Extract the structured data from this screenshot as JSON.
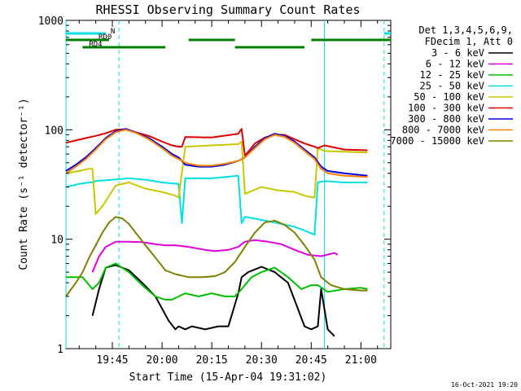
{
  "chart_data": {
    "type": "line",
    "title": "RHESSI Observing Summary Count Rates",
    "xlabel": "Start Time (15-Apr-04 19:31:02)",
    "ylabel": "Count Rate (s⁻¹ detector⁻¹)",
    "ylog": true,
    "xlim": [
      "19:31",
      "21:09"
    ],
    "ylim": [
      1,
      1000
    ],
    "xticks": [
      "19:45",
      "20:00",
      "20:15",
      "20:30",
      "20:45",
      "21:00"
    ],
    "yticks": [
      "1",
      "10",
      "100",
      "1000"
    ],
    "legend_header": [
      "Det 1,3,4,5,6,9,",
      "FDecim 1, Att 0"
    ],
    "legend_placement": "right",
    "series": [
      {
        "name": "3 - 6 keV",
        "color": "#000000",
        "x": [
          "19:39",
          "19:41",
          "19:43",
          "19:46",
          "19:50",
          "19:54",
          "19:58",
          "20:02",
          "20:04",
          "20:05",
          "20:07",
          "20:09",
          "20:13",
          "20:17",
          "20:20",
          "20:23",
          "20:24",
          "20:26",
          "20:30",
          "20:34",
          "20:38",
          "20:43",
          "20:45",
          "20:47",
          "20:48",
          "20:50",
          "20:52"
        ],
        "y": [
          2.0,
          3.5,
          5.5,
          5.8,
          5.2,
          4.0,
          3.0,
          1.8,
          1.5,
          1.6,
          1.5,
          1.6,
          1.5,
          1.6,
          1.6,
          3.2,
          4.5,
          5.0,
          5.6,
          5.0,
          4.0,
          1.6,
          1.5,
          1.6,
          3.5,
          1.5,
          1.3
        ]
      },
      {
        "name": "6 - 12 keV",
        "color": "#e000e0",
        "x": [
          "19:39",
          "19:41",
          "19:43",
          "19:46",
          "19:50",
          "19:54",
          "19:58",
          "20:01",
          "20:04",
          "20:08",
          "20:13",
          "20:16",
          "20:20",
          "20:23",
          "20:25",
          "20:28",
          "20:32",
          "20:36",
          "20:40",
          "20:44",
          "20:48",
          "20:52",
          "20:53"
        ],
        "y": [
          5.0,
          7.0,
          8.5,
          9.5,
          9.5,
          9.4,
          9.0,
          8.8,
          8.8,
          8.5,
          8.0,
          7.8,
          8.0,
          8.5,
          9.5,
          9.8,
          9.5,
          9.0,
          8.0,
          7.2,
          7.0,
          7.5,
          7.2
        ]
      },
      {
        "name": "12 - 25 keV",
        "color": "#00c000",
        "x": [
          "19:31",
          "19:36",
          "19:39",
          "19:41",
          "19:43",
          "19:46",
          "19:50",
          "19:54",
          "19:58",
          "20:01",
          "20:03",
          "20:05",
          "20:07",
          "20:11",
          "20:15",
          "20:19",
          "20:22",
          "20:24",
          "20:27",
          "20:30",
          "20:34",
          "20:38",
          "20:42",
          "20:45",
          "20:47",
          "20:50",
          "20:55",
          "21:00",
          "21:02"
        ],
        "y": [
          4.5,
          4.5,
          3.5,
          4.0,
          5.5,
          6.0,
          5.0,
          3.8,
          3.0,
          2.8,
          2.8,
          3.0,
          3.2,
          3.0,
          3.2,
          3.0,
          3.0,
          3.5,
          4.5,
          5.0,
          5.5,
          4.5,
          3.5,
          3.8,
          3.8,
          3.3,
          3.5,
          3.6,
          3.5
        ]
      },
      {
        "name": "25 - 50 keV",
        "color": "#00e0e0",
        "x": [
          "19:31",
          "19:35",
          "19:38",
          "19:39",
          "19:40",
          "19:45",
          "19:50",
          "19:55",
          "20:00",
          "20:05",
          "20:06",
          "20:07",
          "20:15",
          "20:23",
          "20:24",
          "20:25",
          "20:30",
          "20:35",
          "20:40",
          "20:43",
          "20:46",
          "20:47",
          "20:49",
          "20:55",
          "21:02"
        ],
        "y": [
          30,
          32,
          33,
          33,
          34,
          35,
          36,
          35,
          33,
          32,
          14,
          36,
          36,
          38,
          14,
          16,
          15,
          14,
          13,
          12,
          11,
          33,
          34,
          33,
          33
        ]
      },
      {
        "name": "50 - 100 keV",
        "color": "#c8c800",
        "x": [
          "19:31",
          "19:35",
          "19:38",
          "19:39",
          "19:40",
          "19:42",
          "19:46",
          "19:50",
          "19:55",
          "20:00",
          "20:04",
          "20:05",
          "20:07",
          "20:15",
          "20:23",
          "20:24",
          "20:25",
          "20:30",
          "20:35",
          "20:40",
          "20:43",
          "20:46",
          "20:47",
          "20:49",
          "20:55",
          "21:02"
        ],
        "y": [
          40,
          42,
          44,
          44,
          17,
          20,
          31,
          33,
          29,
          27,
          25,
          24,
          70,
          72,
          74,
          78,
          26,
          30,
          28,
          27,
          25,
          24,
          68,
          64,
          63,
          62
        ]
      },
      {
        "name": "100 - 300 keV",
        "color": "#e00000",
        "x": [
          "19:31",
          "19:34",
          "19:37",
          "19:40",
          "19:43",
          "19:46",
          "19:49",
          "19:52",
          "19:56",
          "20:00",
          "20:03",
          "20:05",
          "20:06",
          "20:07",
          "20:15",
          "20:23",
          "20:24",
          "20:25",
          "20:28",
          "20:31",
          "20:34",
          "20:37",
          "20:40",
          "20:43",
          "20:46",
          "20:47",
          "20:49",
          "20:55",
          "21:02"
        ],
        "y": [
          76,
          80,
          84,
          88,
          93,
          100,
          101,
          95,
          88,
          78,
          72,
          70,
          70,
          86,
          85,
          92,
          102,
          58,
          75,
          85,
          90,
          90,
          82,
          75,
          70,
          68,
          72,
          66,
          65
        ]
      },
      {
        "name": "300 - 800 keV",
        "color": "#0000e0",
        "x": [
          "19:31",
          "19:34",
          "19:37",
          "19:40",
          "19:43",
          "19:46",
          "19:49",
          "19:52",
          "19:56",
          "20:00",
          "20:03",
          "20:05",
          "20:07",
          "20:11",
          "20:15",
          "20:19",
          "20:23",
          "20:25",
          "20:28",
          "20:31",
          "20:34",
          "20:37",
          "20:40",
          "20:43",
          "20:46",
          "20:48",
          "20:50",
          "20:55",
          "21:02"
        ],
        "y": [
          42,
          48,
          56,
          68,
          84,
          97,
          102,
          95,
          84,
          70,
          60,
          56,
          48,
          46,
          46,
          48,
          52,
          56,
          70,
          84,
          92,
          88,
          78,
          66,
          56,
          46,
          42,
          40,
          38
        ]
      },
      {
        "name": "800 - 7000 keV",
        "color": "#ff8000",
        "x": [
          "19:31",
          "19:34",
          "19:37",
          "19:40",
          "19:43",
          "19:46",
          "19:49",
          "19:52",
          "19:56",
          "20:00",
          "20:03",
          "20:05",
          "20:07",
          "20:11",
          "20:15",
          "20:19",
          "20:23",
          "20:25",
          "20:28",
          "20:31",
          "20:34",
          "20:37",
          "20:40",
          "20:43",
          "20:46",
          "20:48",
          "20:50",
          "20:55",
          "21:02"
        ],
        "y": [
          40,
          46,
          54,
          66,
          82,
          95,
          100,
          94,
          82,
          68,
          58,
          54,
          50,
          47,
          47,
          49,
          52,
          56,
          68,
          82,
          90,
          86,
          76,
          64,
          54,
          44,
          40,
          38,
          37
        ]
      },
      {
        "name": "7000 - 15000 keV",
        "color": "#808000",
        "x": [
          "19:31",
          "19:34",
          "19:36",
          "19:38",
          "19:40",
          "19:42",
          "19:44",
          "19:46",
          "19:48",
          "19:50",
          "19:52",
          "19:55",
          "19:58",
          "20:01",
          "20:04",
          "20:08",
          "20:12",
          "20:16",
          "20:19",
          "20:22",
          "20:25",
          "20:28",
          "20:31",
          "20:34",
          "20:37",
          "20:40",
          "20:43",
          "20:46",
          "20:48",
          "20:51",
          "20:55",
          "21:00",
          "21:02"
        ],
        "y": [
          3.0,
          4.0,
          5.0,
          6.8,
          8.8,
          11.5,
          14.2,
          16.0,
          15.5,
          13.8,
          11.5,
          8.8,
          6.8,
          5.2,
          4.8,
          4.5,
          4.5,
          4.6,
          5.0,
          6.2,
          8.5,
          11.5,
          14.2,
          14.8,
          13.5,
          11.5,
          8.8,
          6.5,
          4.5,
          3.8,
          3.5,
          3.4,
          3.4
        ]
      }
    ],
    "vlines_solid": [
      "19:31",
      "20:49"
    ],
    "vlines_dashed": [
      "19:47",
      "21:07"
    ],
    "flags": [
      {
        "label": "N",
        "color": "#00e0e0",
        "segments": [
          [
            "19:31",
            "19:43"
          ],
          [
            "21:07",
            "21:09"
          ]
        ]
      },
      {
        "label": "RD0",
        "color": "#008000",
        "segments": [
          [
            "19:31",
            "19:44"
          ],
          [
            "20:08",
            "20:22"
          ],
          [
            "20:45",
            "21:09"
          ]
        ]
      },
      {
        "label": "RD4",
        "color": "#008000",
        "segments": [
          [
            "19:36",
            "20:01"
          ],
          [
            "20:22",
            "20:43"
          ]
        ]
      }
    ]
  },
  "footer": {
    "timestamp": "16-Oct-2021 19:20"
  }
}
